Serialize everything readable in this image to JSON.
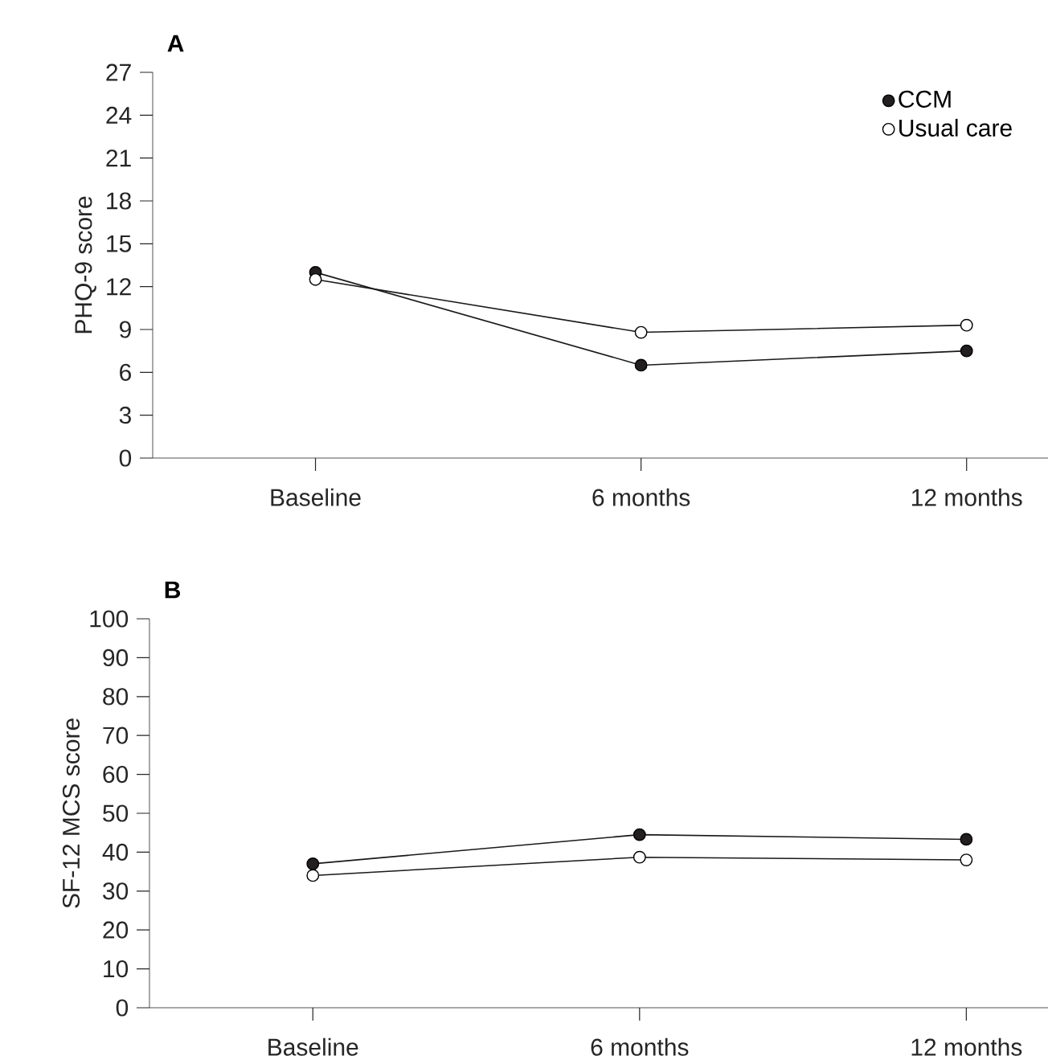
{
  "chart_data": [
    {
      "type": "line",
      "title": "A",
      "ylabel": "PHQ-9 score",
      "categories": [
        "Baseline",
        "6 months",
        "12 months"
      ],
      "ylim": [
        0,
        27
      ],
      "yticks": [
        0,
        3,
        6,
        9,
        12,
        15,
        18,
        21,
        24,
        27
      ],
      "marker": "circle",
      "legend": "top right",
      "grid": false,
      "series": [
        {
          "name": "CCM",
          "color": "#231f20",
          "values": [
            13.0,
            6.5,
            7.5
          ]
        },
        {
          "name": "Usual care",
          "color": "#ffffff",
          "values": [
            12.5,
            8.8,
            9.3
          ]
        }
      ]
    },
    {
      "type": "line",
      "title": "B",
      "ylabel": "SF-12 MCS score",
      "categories": [
        "Baseline",
        "6 months",
        "12 months"
      ],
      "ylim": [
        0,
        100
      ],
      "yticks": [
        0,
        10,
        20,
        30,
        40,
        50,
        60,
        70,
        80,
        90,
        100
      ],
      "marker": "circle",
      "grid": false,
      "series": [
        {
          "color": "#231f20",
          "values": [
            37,
            44.5,
            43.3
          ]
        },
        {
          "color": "#ffffff",
          "values": [
            34,
            38.7,
            38
          ]
        }
      ]
    }
  ]
}
